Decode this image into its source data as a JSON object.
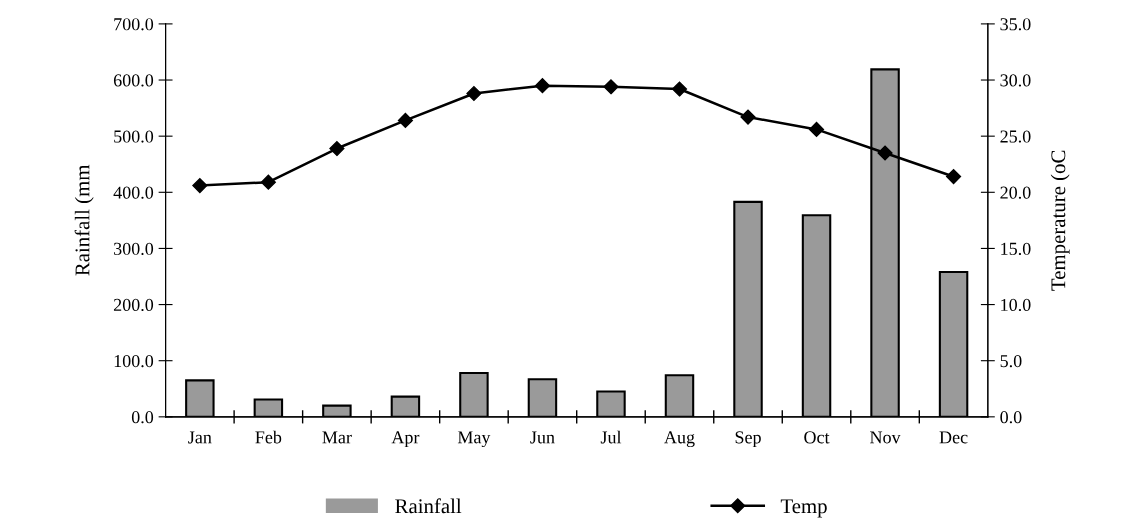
{
  "chart_data": {
    "type": "bar",
    "ylabel": "Rainfall (mm",
    "y2label": "Temperature (oC",
    "categories": [
      "Jan",
      "Feb",
      "Mar",
      "Apr",
      "May",
      "Jun",
      "Jul",
      "Aug",
      "Sep",
      "Oct",
      "Nov",
      "Dec"
    ],
    "series": [
      {
        "name": "Rainfall",
        "color": "#9a9a9a",
        "values": [
          65,
          31,
          20,
          36,
          78,
          67,
          45,
          74,
          383,
          359,
          619,
          258
        ]
      },
      {
        "name": "Temp",
        "type": "line",
        "axis": "y2",
        "color": "#000000",
        "marker": "diamond",
        "values": [
          20.6,
          20.9,
          23.9,
          26.4,
          28.8,
          29.5,
          29.4,
          29.2,
          26.7,
          25.6,
          23.5,
          21.4
        ]
      }
    ],
    "ylim": [
      0,
      700
    ],
    "yticks": [
      {
        "value": 0,
        "label": "0.0"
      },
      {
        "value": 100,
        "label": "100.0"
      },
      {
        "value": 200,
        "label": "200.0"
      },
      {
        "value": 300,
        "label": "300.0"
      },
      {
        "value": 400,
        "label": "400.0"
      },
      {
        "value": 500,
        "label": "500.0"
      },
      {
        "value": 600,
        "label": "600.0"
      },
      {
        "value": 700,
        "label": "700.0"
      }
    ],
    "y2lim": [
      0,
      35
    ],
    "y2ticks": [
      {
        "value": 0,
        "label": "0.0"
      },
      {
        "value": 5,
        "label": "5.0"
      },
      {
        "value": 10,
        "label": "10.0"
      },
      {
        "value": 15,
        "label": "15.0"
      },
      {
        "value": 20,
        "label": "20.0"
      },
      {
        "value": 25,
        "label": "25.0"
      },
      {
        "value": 30,
        "label": "30.0"
      },
      {
        "value": 35,
        "label": "35.0"
      }
    ],
    "grid": false,
    "legend": "bottom"
  }
}
